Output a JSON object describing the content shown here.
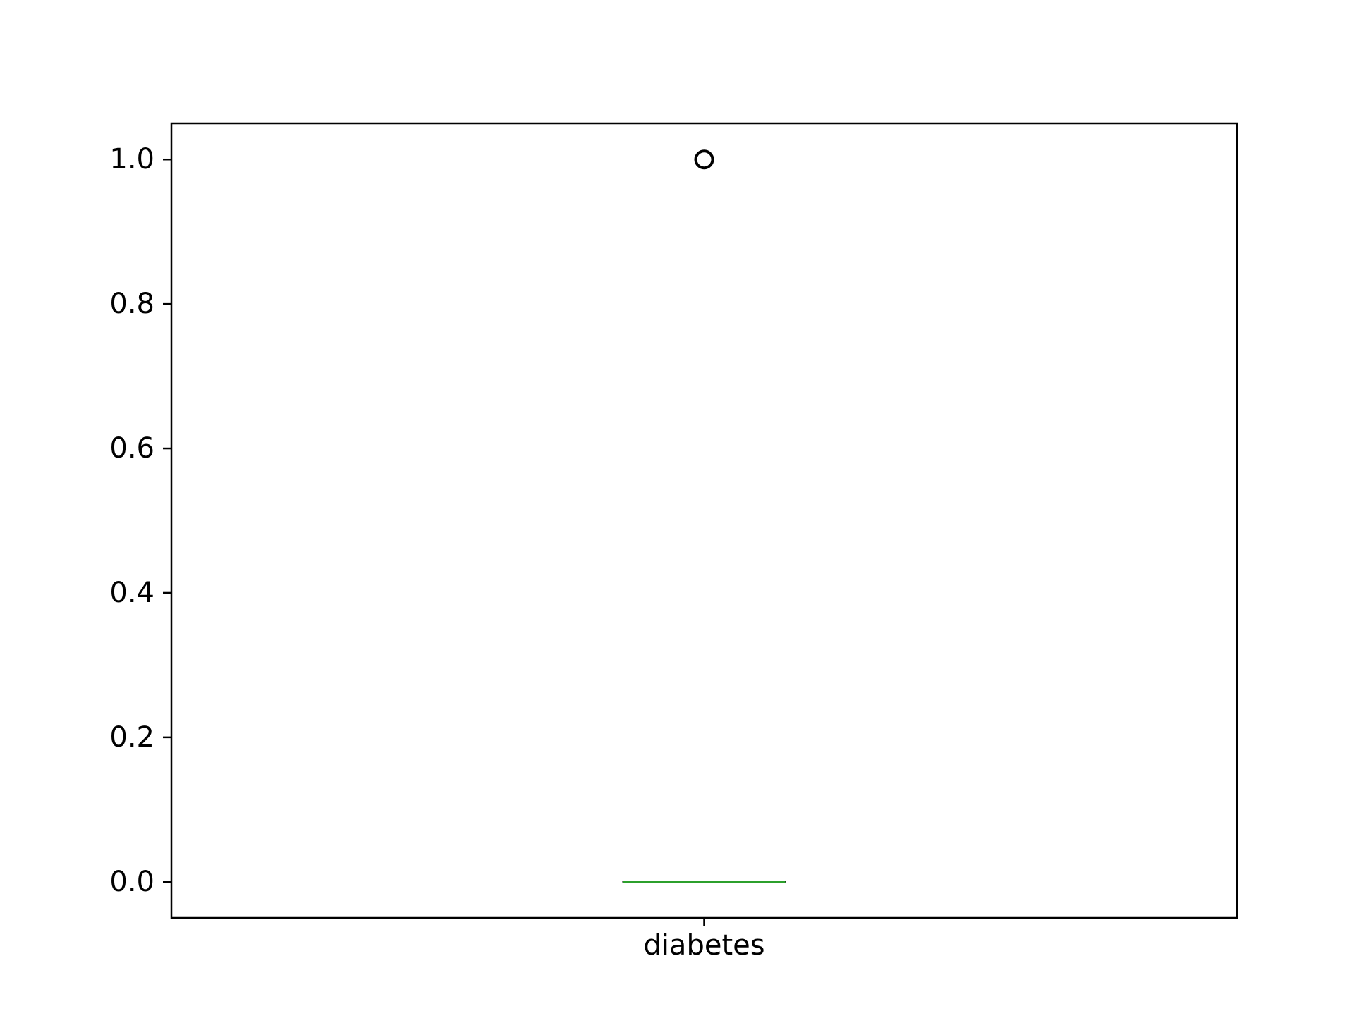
{
  "chart_data": {
    "type": "box",
    "categories": [
      "diabetes"
    ],
    "series": [
      {
        "category": "diabetes",
        "min": 0,
        "q1": 0,
        "median": 0,
        "q3": 0,
        "max": 0,
        "outliers": [
          1.0
        ]
      }
    ],
    "title": "",
    "xlabel": "",
    "ylabel": "",
    "ylim": [
      -0.05,
      1.05
    ],
    "yticks": [
      0.0,
      0.2,
      0.4,
      0.6,
      0.8,
      1.0
    ],
    "ytick_labels": [
      "0.0",
      "0.2",
      "0.4",
      "0.6",
      "0.8",
      "1.0"
    ],
    "grid": false,
    "colors": {
      "median": "#2ca02c",
      "box": "#000000",
      "outlier": "#000000",
      "axes": "#000000",
      "background": "#ffffff"
    }
  }
}
